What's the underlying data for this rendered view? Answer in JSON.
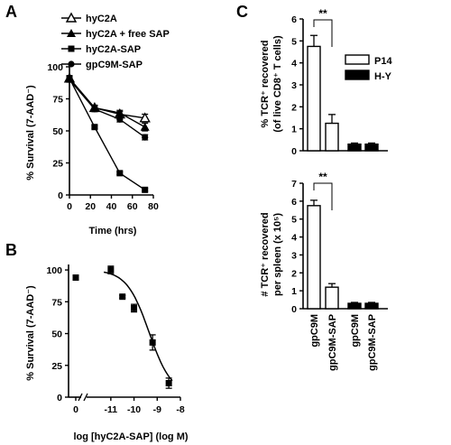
{
  "figure": {
    "panel_a": "A",
    "panel_b": "B",
    "panel_c": "C"
  },
  "chart_data": [
    {
      "panel": "A",
      "type": "line",
      "xlabel": "Time (hrs)",
      "ylabel": "% Survival (7-AAD⁻)",
      "xlim": [
        0,
        80
      ],
      "ylim": [
        0,
        100
      ],
      "xticks": [
        0,
        20,
        40,
        60,
        80
      ],
      "yticks": [
        0,
        25,
        50,
        75,
        100
      ],
      "legend_position": "top",
      "series": [
        {
          "name": "hyC2A",
          "marker": "open-triangle",
          "x": [
            0,
            24,
            48,
            72
          ],
          "y": [
            91,
            68,
            63,
            60
          ],
          "err": [
            2,
            2,
            2,
            3
          ]
        },
        {
          "name": "hyC2A + free SAP",
          "marker": "filled-triangle",
          "x": [
            0,
            24,
            48,
            72
          ],
          "y": [
            91,
            68,
            64,
            53
          ],
          "err": [
            2,
            2,
            2,
            3
          ]
        },
        {
          "name": "hyC2A-SAP",
          "marker": "filled-square",
          "x": [
            0,
            24,
            48,
            72
          ],
          "y": [
            91,
            53,
            17,
            4
          ],
          "err": [
            2,
            1,
            1,
            1
          ]
        },
        {
          "name": "gpC9M-SAP",
          "marker": "filled-circle",
          "x": [
            0,
            24,
            48,
            72
          ],
          "y": [
            90,
            67,
            59,
            45
          ],
          "err": [
            2,
            2,
            2,
            2
          ]
        }
      ]
    },
    {
      "panel": "B",
      "type": "scatter",
      "xlabel": "log [hyC2A-SAP] (log M)",
      "ylabel": "% Survival (7-AAD⁻)",
      "ylim": [
        0,
        110
      ],
      "xlim": [
        -12,
        -8
      ],
      "xticks": [
        "0",
        "-11",
        "-10",
        "-9",
        "-8"
      ],
      "xtick_values": [
        0,
        -11,
        -10,
        -9,
        -8
      ],
      "yticks": [
        0,
        25,
        50,
        75,
        100
      ],
      "points": [
        {
          "x": -11,
          "y": 100,
          "err": 3
        },
        {
          "x": -10.5,
          "y": 79,
          "err": 1
        },
        {
          "x": -10,
          "y": 70,
          "err": 3
        },
        {
          "x": -9.2,
          "y": 43,
          "err": 6
        },
        {
          "x": -8.5,
          "y": 11,
          "err": 4
        }
      ],
      "zero_dose_point": {
        "x": 0,
        "y": 94,
        "err": 1
      },
      "fit_curve": "sigmoidal dose-response"
    },
    {
      "panel": "C-top",
      "type": "bar",
      "ylabel_line1": "% TCR⁺ recovered",
      "ylabel_line2": "(of live CD8⁺ T cells)",
      "ylim": [
        0,
        6
      ],
      "yticks": [
        0,
        1,
        2,
        3,
        4,
        5,
        6
      ],
      "categories": [
        "gpC9M",
        "gpC9M-SAP",
        "gpC9M",
        "gpC9M-SAP"
      ],
      "groups": [
        "P14",
        "P14",
        "H-Y",
        "H-Y"
      ],
      "values": [
        4.75,
        1.25,
        0.3,
        0.3
      ],
      "errors": [
        0.5,
        0.4,
        0.05,
        0.05
      ],
      "legend": [
        {
          "name": "P14",
          "fill": "open"
        },
        {
          "name": "H-Y",
          "fill": "black"
        }
      ],
      "legend_position": "top-right",
      "significance": {
        "label": "**",
        "between": [
          0,
          1
        ]
      }
    },
    {
      "panel": "C-bottom",
      "type": "bar",
      "ylabel_line1": "# TCR⁺ recovered",
      "ylabel_line2": "per spleen (x 10⁵)",
      "ylim": [
        0,
        7
      ],
      "yticks": [
        0,
        1,
        2,
        3,
        4,
        5,
        6,
        7
      ],
      "categories": [
        "gpC9M",
        "gpC9M-SAP",
        "gpC9M",
        "gpC9M-SAP"
      ],
      "groups": [
        "P14",
        "P14",
        "H-Y",
        "H-Y"
      ],
      "values": [
        5.75,
        1.2,
        0.3,
        0.3
      ],
      "errors": [
        0.3,
        0.2,
        0.05,
        0.05
      ],
      "significance": {
        "label": "**",
        "between": [
          0,
          1
        ]
      }
    }
  ]
}
